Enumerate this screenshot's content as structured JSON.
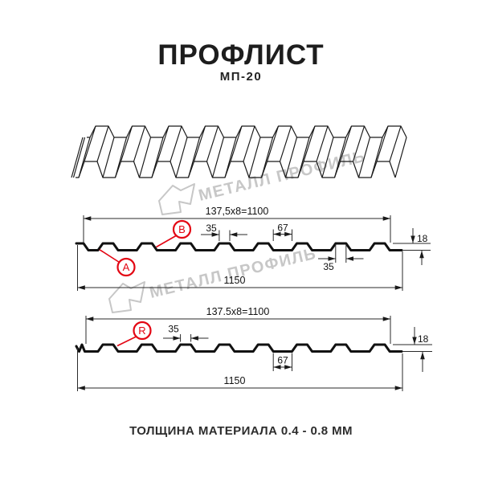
{
  "header": {
    "title": "ПРОФЛИСТ",
    "subtitle": "МП-20"
  },
  "colors": {
    "accent_red": "#e30613",
    "line": "#1a1a1a",
    "watermark_gray": "#c7c7c7"
  },
  "watermark": {
    "text": "МЕТАЛЛ ПРОФИЛЬ"
  },
  "profile_a": {
    "working_width": "137,5x8=1100",
    "rib_top_width": "35",
    "valley_width": "67",
    "rib_top_width_2": "35",
    "height": "18",
    "total_width": "1150",
    "label_a": "A",
    "label_b": "B"
  },
  "profile_r": {
    "working_width": "137.5x8=1100",
    "rib_top_width": "35",
    "valley_width": "67",
    "height": "18",
    "total_width": "1150",
    "label_r": "R"
  },
  "footer": {
    "material_thickness": "ТОЛЩИНА МАТЕРИАЛА 0.4 - 0.8 ММ"
  }
}
